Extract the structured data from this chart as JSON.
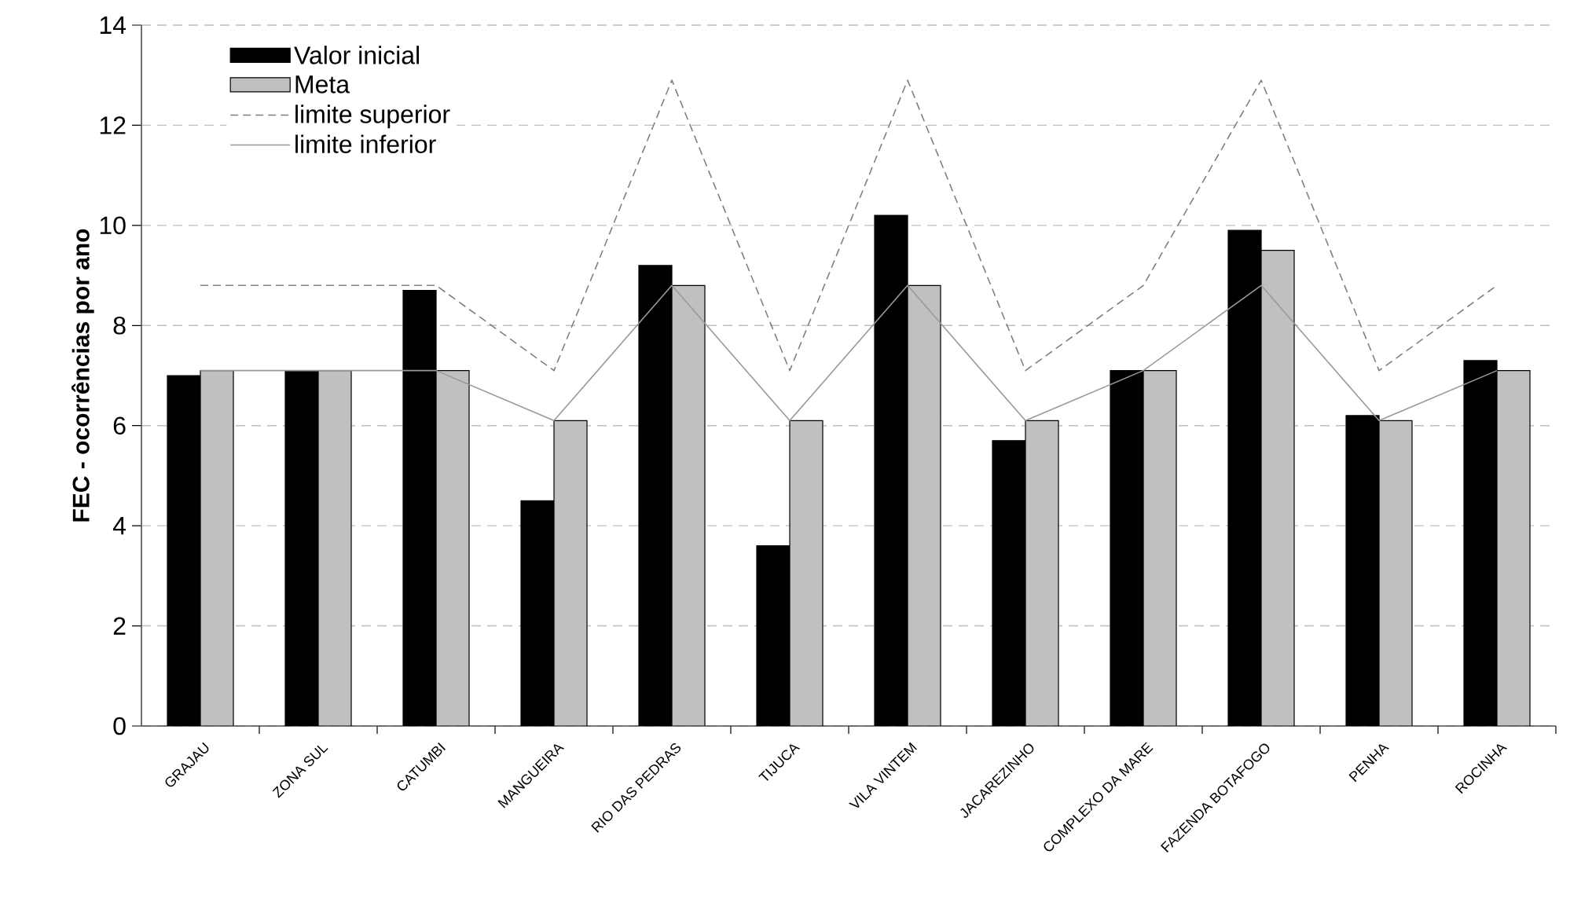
{
  "chart_data": {
    "type": "bar",
    "ylabel": "FEC - ocorrências por ano",
    "categories": [
      "GRAJAU",
      "ZONA SUL",
      "CATUMBI",
      "MANGUEIRA",
      "RIO DAS PEDRAS",
      "TIJUCA",
      "VILA VINTEM",
      "JACAREZINHO",
      "COMPLEXO DA MARE",
      "FAZENDA BOTAFOGO",
      "PENHA",
      "ROCINHA"
    ],
    "ylim": [
      0,
      14
    ],
    "yticks": [
      0,
      2,
      4,
      6,
      8,
      10,
      12,
      14
    ],
    "grid": "y",
    "legend": "top left",
    "series": [
      {
        "name": "Valor inicial",
        "color": "#000000",
        "values": [
          7.0,
          7.1,
          8.7,
          4.5,
          9.2,
          3.6,
          10.2,
          5.7,
          7.1,
          9.9,
          6.2,
          7.3
        ]
      },
      {
        "name": "Meta",
        "color": "#c0c0c0",
        "values": [
          7.1,
          7.1,
          7.1,
          6.1,
          8.8,
          6.1,
          8.8,
          6.1,
          7.1,
          9.5,
          6.1,
          7.1
        ]
      },
      {
        "name": "limite superior",
        "type": "line",
        "line_style": "dashed",
        "color": "#808080",
        "values": [
          8.8,
          8.8,
          8.8,
          7.1,
          12.9,
          7.1,
          12.9,
          7.1,
          8.8,
          12.9,
          7.1,
          8.8
        ]
      },
      {
        "name": "limite inferior",
        "type": "line",
        "line_style": "solid",
        "color": "#999999",
        "values": [
          7.1,
          7.1,
          7.1,
          6.1,
          8.8,
          6.1,
          8.8,
          6.1,
          7.1,
          8.8,
          6.1,
          7.1
        ]
      }
    ]
  }
}
